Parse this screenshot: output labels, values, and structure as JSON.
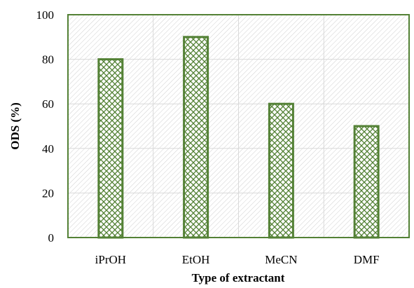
{
  "chart_data": {
    "type": "bar",
    "title": "",
    "xlabel": "Type of extractant",
    "ylabel": "ODS (%)",
    "categories": [
      "iPrOH",
      "EtOH",
      "MeCN",
      "DMF"
    ],
    "values": [
      80,
      90,
      60,
      50
    ],
    "ylim": [
      0,
      100
    ],
    "yticks": [
      0,
      20,
      40,
      60,
      80,
      100
    ],
    "grid": true,
    "legend": "none",
    "bar_style": "crosshatch pattern",
    "colors": {
      "bar_outline": "#538135",
      "bar_pattern": "#538135",
      "plot_border": "#538135",
      "grid": "#d9d9d9",
      "background_hatch": "#d0d0d0"
    }
  }
}
